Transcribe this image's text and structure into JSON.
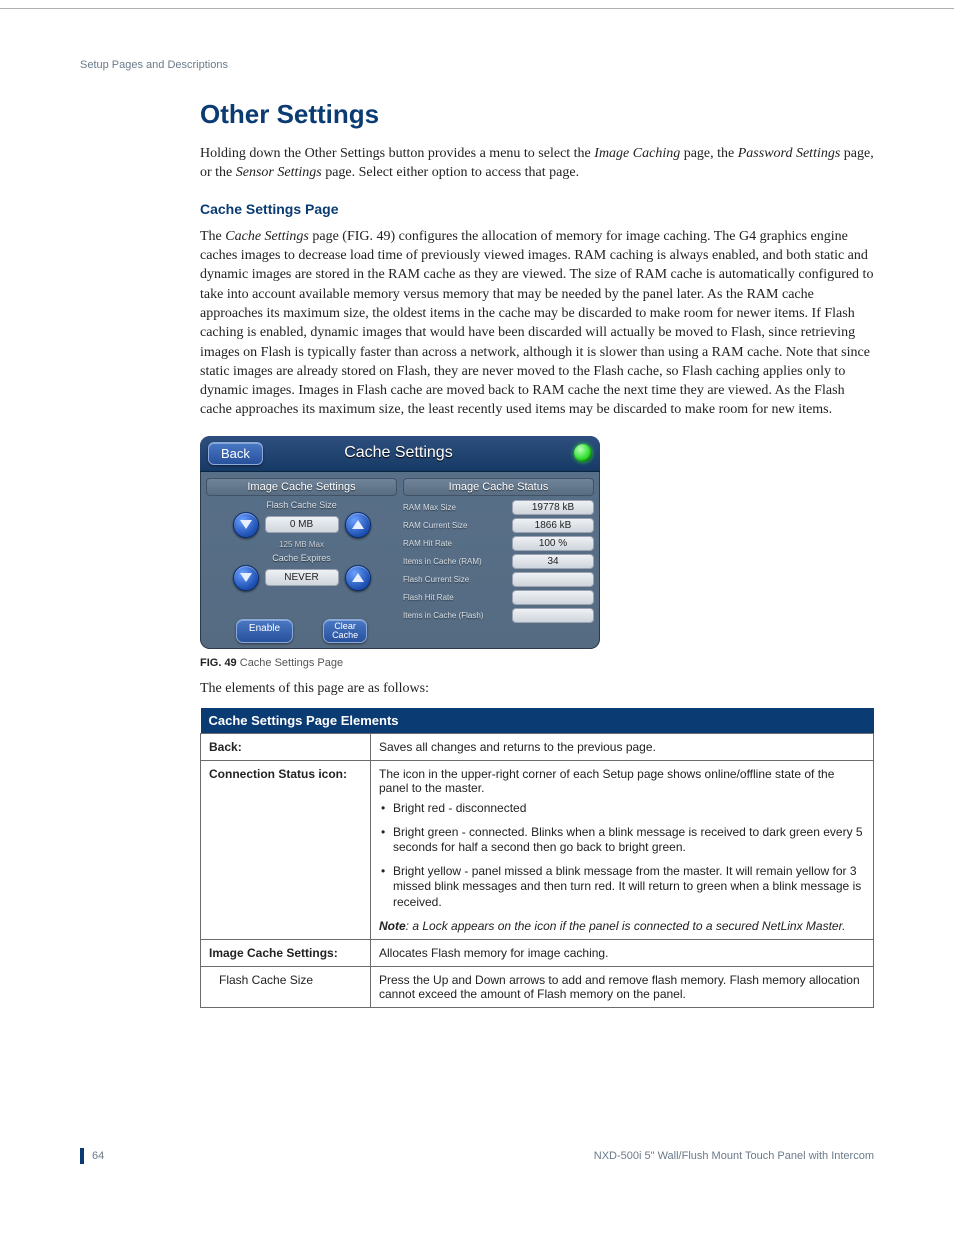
{
  "running_header": "Setup Pages and Descriptions",
  "title": "Other Settings",
  "intro_parts": {
    "p1a": "Holding down the Other Settings button provides a menu to select the ",
    "p1_em1": "Image Caching",
    "p1b": " page, the ",
    "p1_em2": "Password Settings",
    "p1c": " page, or the ",
    "p1_em3": "Sensor Settings",
    "p1d": " page. Select either option to access that page."
  },
  "subsection": "Cache Settings Page",
  "body_parts": {
    "a": "The ",
    "em": "Cache Settings",
    "b": " page (FIG. 49) configures the allocation of memory for image caching. The G4 graphics engine caches images to decrease load time of previously viewed images. RAM caching is always enabled, and both static and dynamic images are stored in the RAM cache as they are viewed. The size of RAM cache is automatically configured to take into account available memory versus memory that may be needed by the panel later. As the RAM cache approaches its maximum size, the oldest items in the cache may be discarded to make room for newer items. If Flash caching is enabled, dynamic images that would have been discarded will actually be moved to Flash, since retrieving images on Flash is typically faster than across a network, although it is slower than using a RAM cache. Note that since static images are already stored on Flash, they are never moved to the Flash cache, so Flash caching applies only to dynamic images. Images in Flash cache are moved back to RAM cache the next time they are viewed. As the Flash cache approaches its maximum size, the least recently used items may be discarded to make room for new items."
  },
  "panel": {
    "back": "Back",
    "title": "Cache Settings",
    "status_color": "#2fe02f",
    "left": {
      "heading": "Image Cache Settings",
      "flash_label": "Flash Cache Size",
      "flash_value": "0 MB",
      "flash_max": "125 MB Max",
      "expires_label": "Cache Expires",
      "expires_value": "NEVER",
      "enable": "Enable",
      "clear1": "Clear",
      "clear2": "Cache"
    },
    "right": {
      "heading": "Image Cache Status",
      "rows": [
        {
          "label": "RAM Max Size",
          "value": "19778 kB"
        },
        {
          "label": "RAM Current Size",
          "value": "1866 kB"
        },
        {
          "label": "RAM Hit Rate",
          "value": "100 %"
        },
        {
          "label": "Items in Cache (RAM)",
          "value": "34"
        },
        {
          "label": "Flash Current Size",
          "value": ""
        },
        {
          "label": "Flash Hit Rate",
          "value": ""
        },
        {
          "label": "Items in Cache (Flash)",
          "value": ""
        }
      ]
    }
  },
  "fig_caption_bold": "FIG. 49",
  "fig_caption_rest": "  Cache Settings Page",
  "lead_out": "The elements of this page are as follows:",
  "table": {
    "header": "Cache Settings Page Elements",
    "rows": [
      {
        "label": "Back:",
        "desc": "Saves all changes and returns to the previous page."
      },
      {
        "label": "Connection Status icon:",
        "desc_intro": "The icon in the upper-right corner of each Setup page shows online/offline state of the panel to the master.",
        "bullets": [
          "Bright red - disconnected",
          "Bright green - connected. Blinks when a blink message is received to dark green every 5 seconds for half a second then go back to bright green.",
          "Bright yellow - panel missed a blink message from the master. It will remain yellow for 3 missed blink messages and then turn red. It will return to green when a blink message is received."
        ],
        "note_bold": "Note",
        "note_rest": ": a Lock appears on the icon if the panel is connected to a secured NetLinx Master."
      },
      {
        "label": "Image Cache Settings:",
        "desc": "Allocates Flash memory for image caching."
      },
      {
        "label": "Flash Cache Size",
        "sub": true,
        "desc": "Press the Up and Down arrows to add and remove flash memory. Flash memory allocation cannot exceed the amount of Flash memory on the panel."
      }
    ]
  },
  "footer": {
    "page_no": "64",
    "product": "NXD-500i 5\" Wall/Flush Mount Touch Panel with Intercom"
  }
}
